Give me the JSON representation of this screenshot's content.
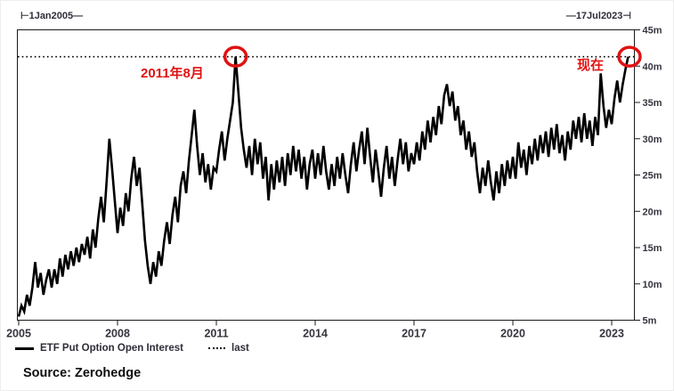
{
  "header": {
    "start_label": "⊢1Jan2005—",
    "end_label": "—17Jul2023⊣"
  },
  "chart_data": {
    "type": "line",
    "title": "",
    "xlabel": "",
    "ylabel": "",
    "xlim": [
      2005.0,
      2023.54
    ],
    "ylim": [
      5,
      45
    ],
    "grid": false,
    "legend_position": "bottom-left",
    "x_tick_labels": [
      "2005",
      "2008",
      "2011",
      "2014",
      "2017",
      "2020",
      "2023"
    ],
    "x_tick_years": [
      2005,
      2008,
      2011,
      2014,
      2017,
      2020,
      2023
    ],
    "y_tick_labels": [
      "5m",
      "10m",
      "15m",
      "20m",
      "25m",
      "30m",
      "35m",
      "40m",
      "45m"
    ],
    "y_tick_values": [
      5,
      10,
      15,
      20,
      25,
      30,
      35,
      40,
      45
    ],
    "unit": "millions of contracts",
    "last_value": 41.3,
    "last_line_style": "dotted",
    "series": [
      {
        "name": "ETF Put Option Open Interest",
        "x_start": 2005.0,
        "x_step_years": 0.083333,
        "values": [
          5.5,
          7.0,
          6.2,
          8.5,
          7.0,
          9.5,
          13.0,
          9.5,
          11.5,
          8.5,
          10.5,
          12.0,
          9.5,
          12.0,
          10.0,
          13.5,
          11.0,
          14.0,
          12.0,
          14.5,
          12.5,
          15.0,
          13.0,
          15.5,
          14.0,
          16.5,
          13.5,
          17.5,
          15.0,
          19.0,
          22.0,
          18.5,
          24.0,
          30.0,
          26.0,
          21.5,
          17.0,
          20.5,
          18.0,
          22.5,
          20.0,
          24.5,
          27.5,
          23.5,
          26.0,
          21.0,
          16.0,
          12.5,
          10.0,
          13.0,
          11.0,
          14.5,
          12.5,
          16.0,
          18.5,
          15.5,
          19.5,
          22.0,
          18.5,
          23.5,
          25.5,
          22.5,
          27.0,
          30.5,
          34.0,
          29.0,
          25.0,
          28.0,
          24.0,
          26.5,
          23.0,
          26.0,
          25.5,
          28.5,
          31.0,
          27.0,
          30.0,
          32.5,
          35.0,
          41.3,
          36.5,
          31.5,
          28.5,
          26.0,
          29.0,
          25.0,
          30.0,
          26.5,
          29.5,
          24.5,
          27.5,
          21.5,
          26.5,
          23.0,
          27.0,
          24.0,
          27.5,
          23.5,
          28.0,
          25.0,
          29.0,
          25.5,
          28.5,
          24.5,
          27.5,
          23.0,
          26.5,
          28.5,
          24.5,
          28.0,
          25.0,
          29.0,
          25.5,
          23.0,
          26.5,
          23.5,
          27.5,
          24.5,
          28.0,
          25.0,
          22.5,
          26.5,
          29.5,
          25.5,
          28.5,
          31.0,
          26.5,
          31.5,
          27.5,
          24.0,
          28.5,
          25.5,
          22.0,
          26.0,
          29.0,
          24.5,
          27.5,
          23.5,
          27.0,
          30.0,
          26.5,
          29.5,
          25.5,
          28.0,
          26.5,
          29.5,
          27.0,
          31.0,
          28.5,
          32.5,
          29.5,
          33.0,
          30.5,
          34.5,
          32.0,
          36.0,
          37.5,
          34.5,
          36.5,
          32.5,
          34.5,
          30.5,
          32.5,
          28.5,
          31.0,
          27.5,
          29.5,
          25.5,
          22.5,
          26.0,
          23.5,
          27.0,
          24.0,
          21.5,
          25.5,
          22.5,
          26.5,
          23.5,
          27.0,
          24.5,
          27.5,
          24.5,
          29.5,
          26.0,
          28.5,
          25.0,
          29.0,
          26.5,
          30.0,
          27.0,
          30.5,
          28.0,
          31.0,
          27.5,
          31.5,
          28.5,
          32.0,
          28.0,
          30.5,
          27.0,
          31.0,
          28.5,
          32.5,
          30.0,
          33.0,
          29.5,
          33.5,
          30.0,
          32.5,
          29.0,
          33.0,
          30.5,
          39.0,
          34.5,
          31.5,
          34.0,
          32.0,
          35.5,
          38.0,
          35.0,
          37.5,
          39.5,
          41.3
        ]
      }
    ],
    "highlight_points": [
      {
        "label": "2011年8月",
        "x": 2011.583,
        "y": 41.3
      },
      {
        "label": "现在",
        "x": 2023.54,
        "y": 41.3
      }
    ]
  },
  "legend": {
    "series_label": "ETF Put Option Open Interest",
    "last_label": "last"
  },
  "annotations": {
    "aug2011": "2011年8月",
    "now": "现在"
  },
  "source_label": "Source: Zerohedge",
  "colors": {
    "series": "#000000",
    "last_line": "#000000",
    "annotation": "#e01212",
    "axis_text": "#35353f",
    "border": "#1a1a1a"
  }
}
